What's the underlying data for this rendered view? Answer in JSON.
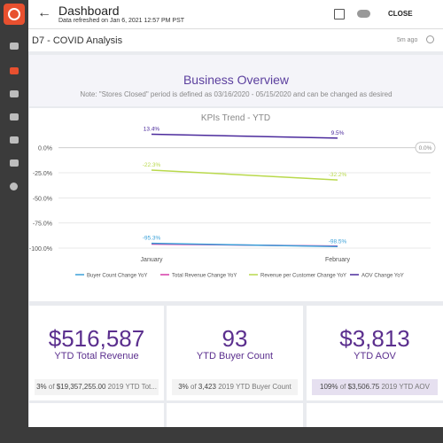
{
  "header": {
    "title": "Dashboard",
    "subtitle": "Data refreshed on Jan 6, 2021 12:57 PM PST",
    "close": "CLOSE"
  },
  "page": {
    "title": "D7 - COVID Analysis",
    "updated": "5m ago"
  },
  "overview": {
    "title": "Business Overview",
    "note": "Note: \"Stores Closed\" period is defined as 03/16/2020 - 05/15/2020 and can be changed as desired"
  },
  "chart_data": {
    "type": "line",
    "title": "KPIs Trend - YTD",
    "categories": [
      "January",
      "February"
    ],
    "series": [
      {
        "name": "Buyer Count Change YoY",
        "color": "#3aa0d8",
        "values": [
          -95.3,
          -98.5
        ],
        "value_labels": [
          "-95.3%",
          "-98.5%"
        ]
      },
      {
        "name": "Total Revenue Change YoY",
        "color": "#d63aa8",
        "values": [
          -96,
          -98
        ]
      },
      {
        "name": "Revenue per Customer Change YoY",
        "color": "#b9d94c",
        "values": [
          -22.3,
          -32.2
        ],
        "value_labels": [
          "-22.3%",
          "-32.2%"
        ]
      },
      {
        "name": "AOV Change YoY",
        "color": "#4b2a9c",
        "values": [
          13.4,
          9.5
        ],
        "value_labels": [
          "13.4%",
          "9.5%"
        ]
      }
    ],
    "ylim": [
      -100,
      20
    ],
    "yticks": [
      {
        "value": 0,
        "label": "0.0%"
      },
      {
        "value": -25,
        "label": "-25.0%"
      },
      {
        "value": -50,
        "label": "-50.0%"
      },
      {
        "value": -75,
        "label": "-75.0%"
      },
      {
        "value": -100,
        "label": "-100.0%"
      }
    ],
    "reference_line": {
      "value": 0,
      "label": "0.0%"
    },
    "grid": true
  },
  "cards": [
    {
      "value": "$516,587",
      "label": "YTD Total Revenue",
      "footer": {
        "percent": "3%",
        "of": "of",
        "amount": "$19,357,255.00",
        "rest": "2019 YTD Tot..."
      }
    },
    {
      "value": "93",
      "label": "YTD Buyer Count",
      "footer": {
        "percent": "3%",
        "of": "of",
        "amount": "3,423",
        "rest": "2019 YTD Buyer Count"
      }
    },
    {
      "value": "$3,813",
      "label": "YTD AOV",
      "footer": {
        "percent": "109%",
        "of": "of",
        "amount": "$3,506.75",
        "rest": "2019 YTD AOV"
      }
    }
  ]
}
